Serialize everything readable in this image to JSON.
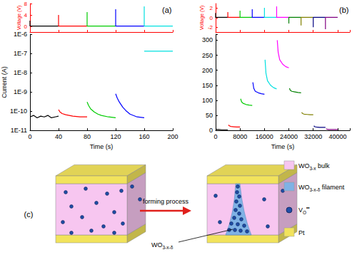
{
  "chart_data": [
    {
      "type": "line",
      "title": "(a)",
      "y_label": "Voltage (V)",
      "xlim": [
        0,
        200
      ],
      "xticks": [
        0,
        40,
        80,
        120,
        160,
        200
      ],
      "ylim": [
        -2,
        8
      ],
      "yticks": [
        0,
        4,
        8
      ],
      "tick_labels": "y",
      "series": [
        {
          "color": "#000000",
          "x": [
            0,
            0,
            0,
            40
          ],
          "values": [
            0,
            2,
            0.1,
            0.1
          ]
        },
        {
          "color": "#ff0000",
          "x": [
            40,
            40,
            40,
            80
          ],
          "values": [
            0,
            4,
            0.1,
            0.1
          ]
        },
        {
          "color": "#00cc00",
          "x": [
            80,
            80,
            80,
            120
          ],
          "values": [
            0,
            5,
            0.1,
            0.1
          ]
        },
        {
          "color": "#0000ff",
          "x": [
            120,
            120,
            120,
            160
          ],
          "values": [
            0,
            6,
            0.1,
            0.1
          ]
        },
        {
          "color": "#00e0e0",
          "x": [
            160,
            160,
            160,
            200
          ],
          "values": [
            0,
            7,
            0.1,
            0.1
          ]
        }
      ]
    },
    {
      "type": "line",
      "x_label": "Time (s)",
      "y_label": "Current (A)",
      "log": "y",
      "xlim": [
        0,
        200
      ],
      "xticks": [
        0,
        40,
        80,
        120,
        160,
        200
      ],
      "ylim": [
        1e-11,
        1e-06
      ],
      "yticks": [
        {
          "value": 1e-11,
          "label": "1E-11"
        },
        {
          "value": 1e-10,
          "label": "1E-10"
        },
        {
          "value": 1e-09,
          "label": "1E-9"
        },
        {
          "value": 1e-08,
          "label": "1E-8"
        },
        {
          "value": 1e-07,
          "label": "1E-7"
        },
        {
          "value": 1e-06,
          "label": "1E-6"
        }
      ],
      "series": [
        {
          "color": "#000000",
          "x": [
            0,
            5,
            10,
            15,
            20,
            25,
            30,
            35,
            40
          ],
          "values": [
            5e-11,
            6e-11,
            4.5e-11,
            5.5e-11,
            5e-11,
            6e-11,
            4.5e-11,
            5e-11,
            5.5e-11
          ]
        },
        {
          "color": "#ff0000",
          "x": [
            40,
            42,
            45,
            50,
            55,
            60,
            70,
            80
          ],
          "values": [
            1.2e-10,
            9e-11,
            7.5e-11,
            6.5e-11,
            6e-11,
            5.5e-11,
            5e-11,
            5e-11
          ]
        },
        {
          "color": "#00cc00",
          "x": [
            80,
            82,
            85,
            90,
            95,
            100,
            110,
            120
          ],
          "values": [
            3e-10,
            2e-10,
            1.3e-10,
            9e-11,
            7e-11,
            6e-11,
            5e-11,
            4.5e-11
          ]
        },
        {
          "color": "#0000ff",
          "x": [
            120,
            122,
            125,
            130,
            135,
            140,
            150,
            160
          ],
          "values": [
            8e-10,
            5e-10,
            3e-10,
            1.6e-10,
            1e-10,
            7e-11,
            5e-11,
            4.5e-11
          ]
        },
        {
          "color": "#00e0e0",
          "x": [
            160,
            170,
            180,
            190,
            200
          ],
          "values": [
            1.3e-07,
            1.3e-07,
            1.3e-07,
            1.3e-07,
            1.3e-07
          ]
        }
      ]
    },
    {
      "type": "line",
      "title": "(b)",
      "y_label": "Voltage (V)",
      "xlim": [
        0,
        44000
      ],
      "xticks": [
        0,
        8000,
        16000,
        24000,
        32000,
        40000
      ],
      "ylim": [
        -3,
        3
      ],
      "yticks": [
        -2,
        0,
        2
      ],
      "tick_labels": "y",
      "series": [
        {
          "color": "#000000",
          "x": [
            0,
            0,
            0,
            4000
          ],
          "values": [
            0,
            1,
            0.1,
            0.1
          ]
        },
        {
          "color": "#ff0000",
          "x": [
            4000,
            4000,
            4000,
            8000
          ],
          "values": [
            0,
            1.2,
            0.1,
            0.1
          ]
        },
        {
          "color": "#00cc00",
          "x": [
            8000,
            8000,
            8000,
            12000
          ],
          "values": [
            0,
            1.5,
            0.1,
            0.1
          ]
        },
        {
          "color": "#0000ff",
          "x": [
            12000,
            12000,
            12000,
            16000
          ],
          "values": [
            0,
            1.8,
            0.1,
            0.1
          ]
        },
        {
          "color": "#00e0e0",
          "x": [
            16000,
            16000,
            16000,
            20000
          ],
          "values": [
            0,
            2.1,
            0.1,
            0.1
          ]
        },
        {
          "color": "#ff00ff",
          "x": [
            20000,
            20000,
            20000,
            24000
          ],
          "values": [
            0,
            2.4,
            0.1,
            0.1
          ]
        },
        {
          "color": "#008000",
          "x": [
            24000,
            24000,
            24000,
            28000
          ],
          "values": [
            0,
            -1.2,
            0.1,
            0.1
          ]
        },
        {
          "color": "#808000",
          "x": [
            28000,
            28000,
            28000,
            32000
          ],
          "values": [
            0,
            -1.6,
            0.1,
            0.1
          ]
        },
        {
          "color": "#000080",
          "x": [
            32000,
            32000,
            32000,
            36000
          ],
          "values": [
            0,
            -2,
            0.1,
            0.1
          ]
        },
        {
          "color": "#800080",
          "x": [
            36000,
            36000,
            36000,
            40000
          ],
          "values": [
            0,
            -2.4,
            0.1,
            0.1
          ]
        }
      ]
    },
    {
      "type": "line",
      "x_label": "Time (s)",
      "xlim": [
        0,
        44000
      ],
      "xticks": [
        0,
        8000,
        16000,
        24000,
        32000,
        40000
      ],
      "ylim": [
        0,
        320
      ],
      "yticks": [
        0,
        50,
        100,
        150,
        200,
        250,
        300
      ],
      "series": [
        {
          "color": "#000000",
          "x": [
            0,
            500,
            1000,
            2000,
            3000,
            4000
          ],
          "values": [
            4,
            3,
            3,
            2,
            2,
            2
          ]
        },
        {
          "color": "#ff0000",
          "x": [
            4200,
            4500,
            5000,
            6000,
            7000,
            8000
          ],
          "values": [
            18,
            15,
            13,
            12,
            11,
            11
          ]
        },
        {
          "color": "#00cc00",
          "x": [
            8200,
            8500,
            9000,
            10000,
            11000,
            12000
          ],
          "values": [
            105,
            95,
            90,
            86,
            84,
            83
          ]
        },
        {
          "color": "#0000ff",
          "x": [
            12200,
            12500,
            13000,
            14000,
            15000,
            16000
          ],
          "values": [
            160,
            140,
            130,
            125,
            122,
            120
          ]
        },
        {
          "color": "#00e0e0",
          "x": [
            16200,
            16500,
            17000,
            18000,
            19000,
            20000
          ],
          "values": [
            235,
            190,
            165,
            150,
            142,
            138
          ]
        },
        {
          "color": "#ff00ff",
          "x": [
            20200,
            20500,
            21000,
            22000,
            23000,
            24000
          ],
          "values": [
            300,
            260,
            235,
            220,
            212,
            208
          ]
        },
        {
          "color": "#008000",
          "x": [
            24200,
            24500,
            25000,
            26000,
            27000,
            28000
          ],
          "values": [
            140,
            133,
            130,
            128,
            126,
            125
          ]
        },
        {
          "color": "#808000",
          "x": [
            28200,
            28500,
            29000,
            30000,
            31000,
            32000
          ],
          "values": [
            60,
            56,
            54,
            53,
            52,
            52
          ]
        },
        {
          "color": "#000080",
          "x": [
            32200,
            32500,
            33000,
            34000,
            35000,
            36000
          ],
          "values": [
            15,
            12,
            11,
            10,
            10,
            10
          ]
        },
        {
          "color": "#800080",
          "x": [
            36200,
            36500,
            37000,
            38000,
            39000,
            40000
          ],
          "values": [
            5,
            4,
            3,
            3,
            3,
            3
          ]
        }
      ]
    }
  ],
  "diagram": {
    "label": "(c)",
    "arrow_label": "forming process",
    "filament_label": [
      {
        "t": "WO"
      },
      {
        "t": "3-x-δ",
        "sub": true
      }
    ],
    "legend": [
      {
        "label": [
          {
            "t": "WO"
          },
          {
            "t": "3-x",
            "sub": true
          },
          {
            "t": " bulk"
          }
        ],
        "color": "#f7c6f0"
      },
      {
        "label": [
          {
            "t": "WO"
          },
          {
            "t": "3-x-δ",
            "sub": true
          },
          {
            "t": " filament"
          }
        ],
        "color": "#7fb2e5"
      },
      {
        "label": [
          {
            "t": "V"
          },
          {
            "t": "O",
            "sub": true
          },
          {
            "t": "••",
            "sup": true
          }
        ],
        "color": "#1f4fa8"
      },
      {
        "label": [
          {
            "t": "Pt"
          }
        ],
        "color": "#f2e35c"
      }
    ]
  }
}
